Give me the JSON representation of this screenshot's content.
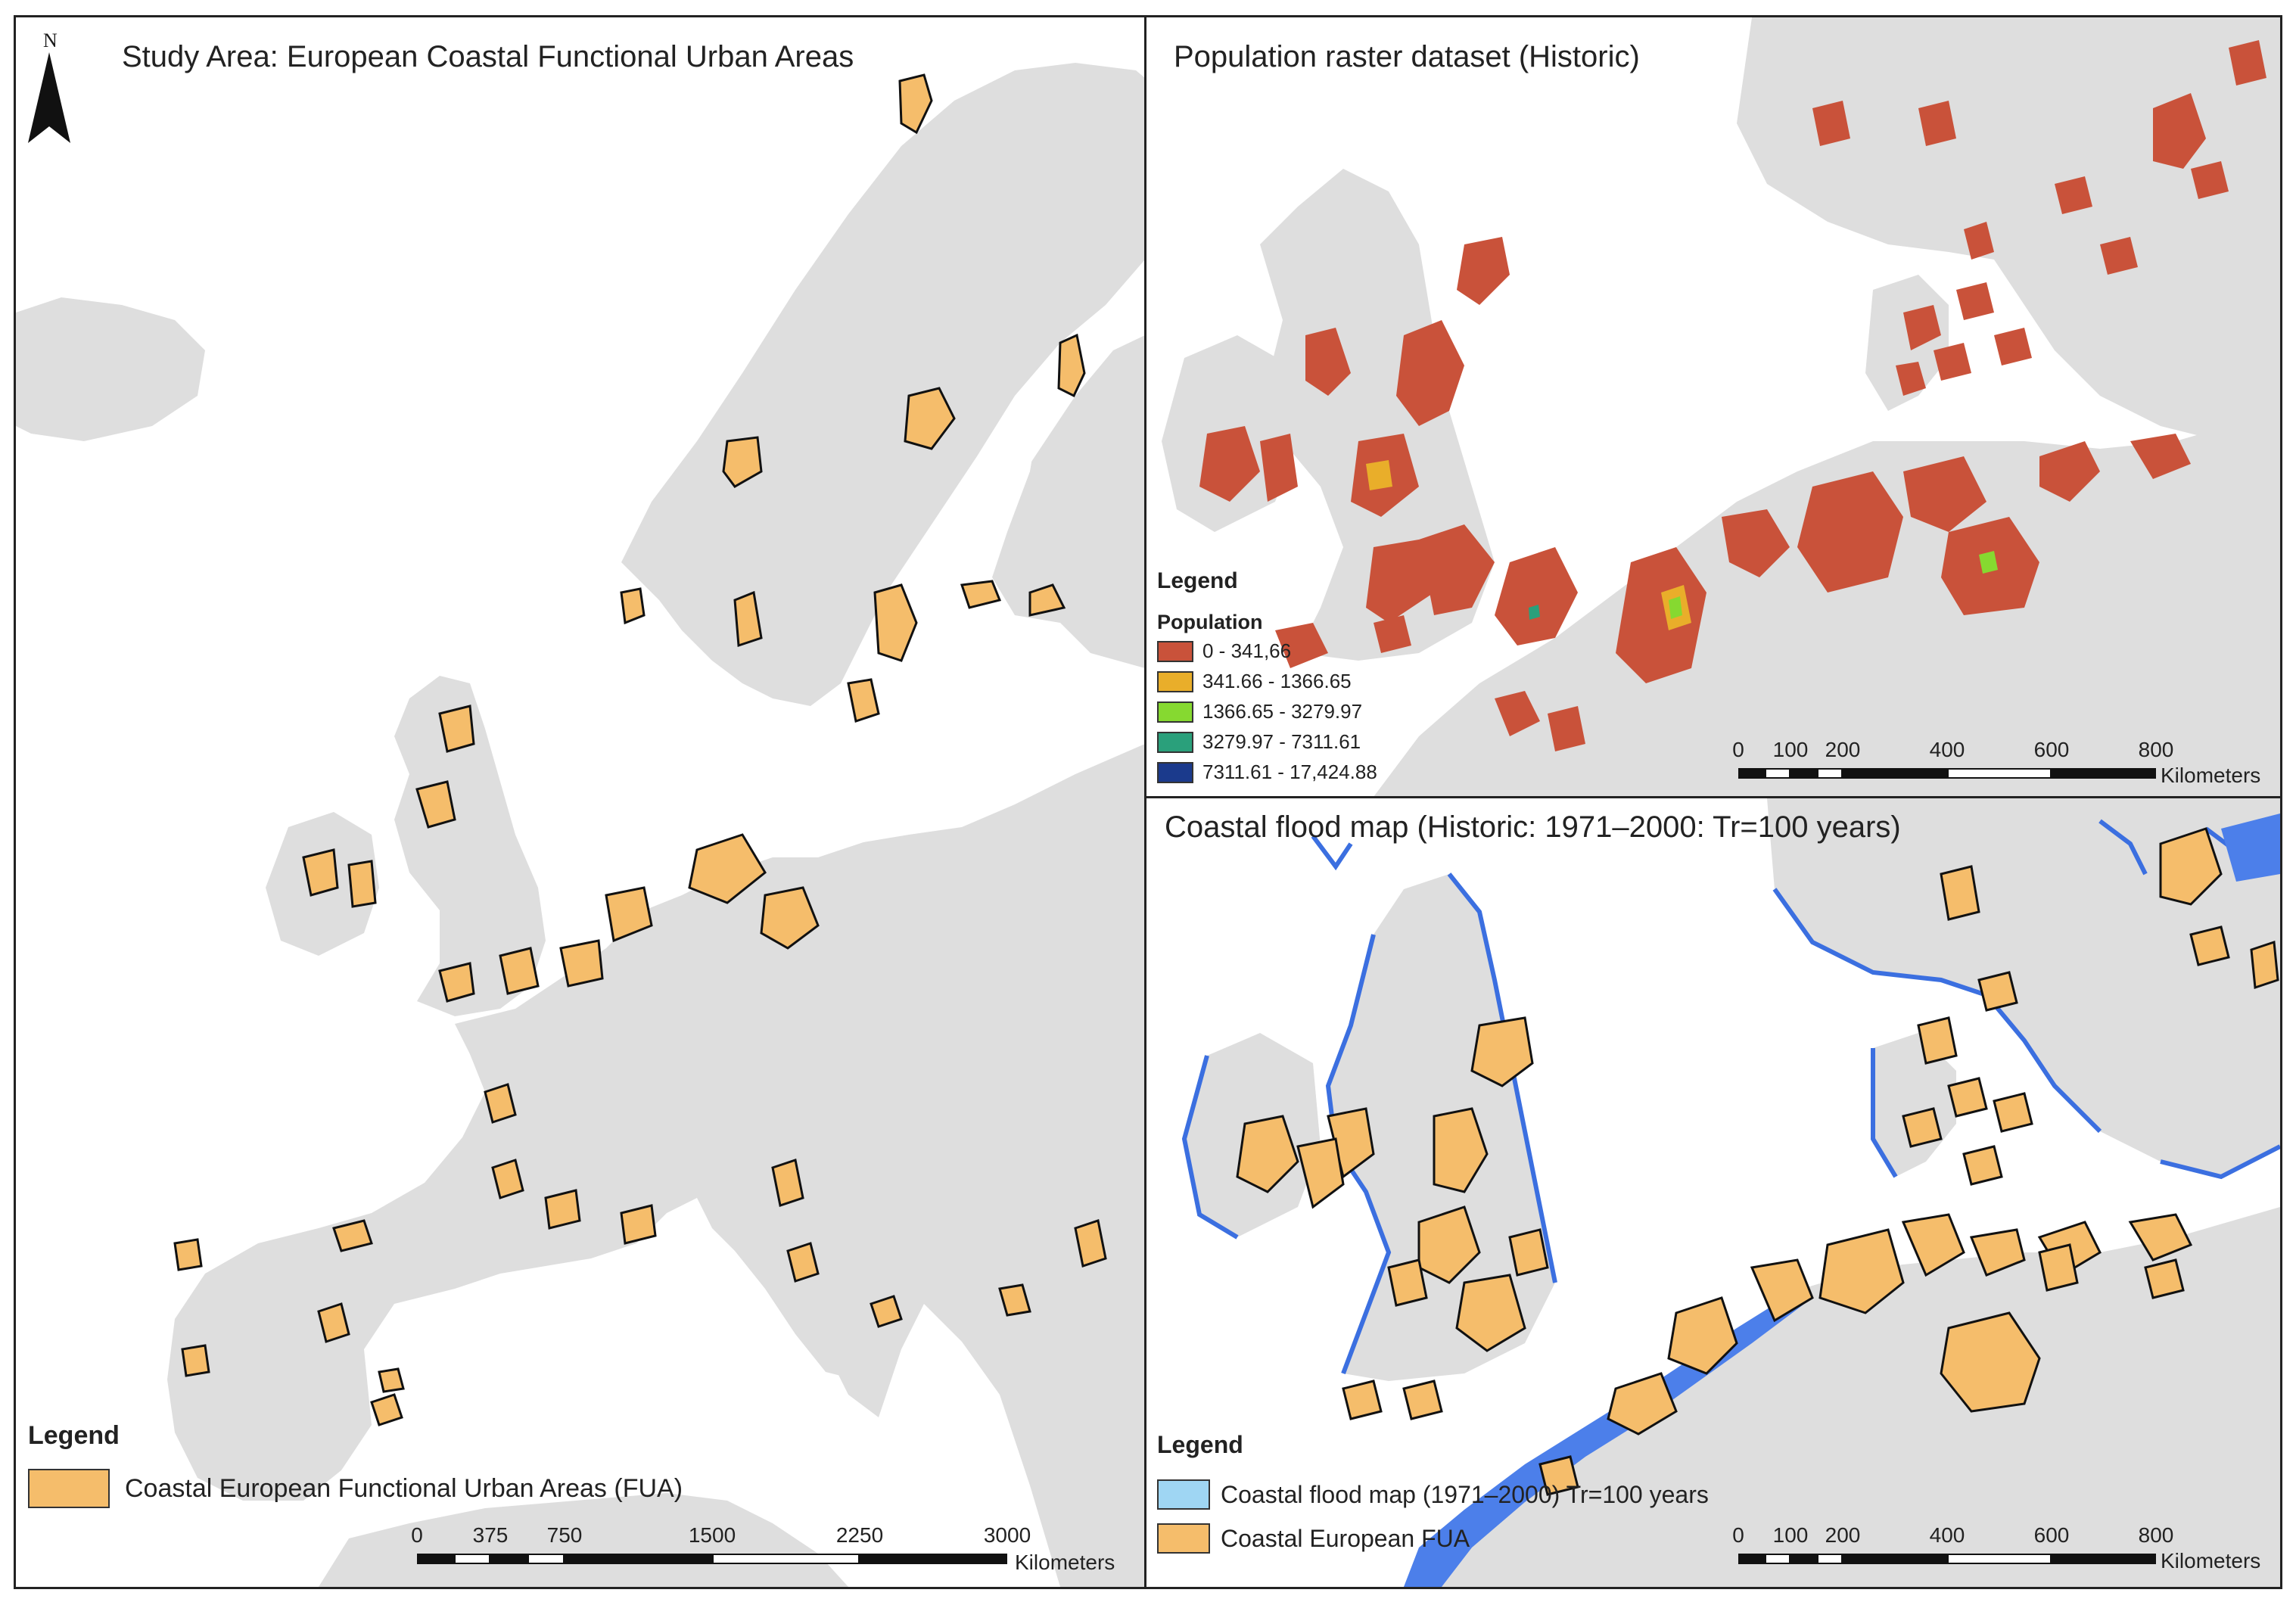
{
  "panels": {
    "study_area": {
      "title": "Study Area: European Coastal Functional Urban Areas",
      "north_label": "N",
      "legend": {
        "title": "Legend",
        "items": [
          {
            "label": "Coastal European Functional Urban Areas (FUA)",
            "color": "#f5bd6b"
          }
        ]
      },
      "scalebar": {
        "ticks": [
          "0",
          "375",
          "750",
          "1500",
          "2250",
          "3000"
        ],
        "unit": "Kilometers"
      }
    },
    "population": {
      "title": "Population raster dataset (Historic)",
      "legend": {
        "title": "Legend",
        "subtitle": "Population",
        "items": [
          {
            "label": "0 - 341,66",
            "color": "#c9523a"
          },
          {
            "label": "341.66 - 1366.65",
            "color": "#e9ae2a"
          },
          {
            "label": "1366.65 - 3279.97",
            "color": "#86d930"
          },
          {
            "label": "3279.97 - 7311.61",
            "color": "#2aa07b"
          },
          {
            "label": "7311.61 - 17,424.88",
            "color": "#1b3a8c"
          }
        ]
      },
      "scalebar": {
        "ticks": [
          "0",
          "100",
          "200",
          "400",
          "600",
          "800"
        ],
        "unit": "Kilometers"
      }
    },
    "flood": {
      "title": "Coastal flood map (Historic: 1971–2000: Tr=100 years)",
      "legend": {
        "title": "Legend",
        "items": [
          {
            "label": "Coastal flood map (1971–2000) Tr=100 years",
            "color": "#9fd6f3"
          },
          {
            "label": "Coastal European FUA",
            "color": "#f5bd6b"
          }
        ]
      },
      "scalebar": {
        "ticks": [
          "0",
          "100",
          "200",
          "400",
          "600",
          "800"
        ],
        "unit": "Kilometers"
      }
    }
  },
  "colors": {
    "land": "#dedede",
    "sea": "#ffffff",
    "fua": "#f5bd6b",
    "population_low": "#c9523a",
    "flood_blue": "#3b6fe0"
  }
}
